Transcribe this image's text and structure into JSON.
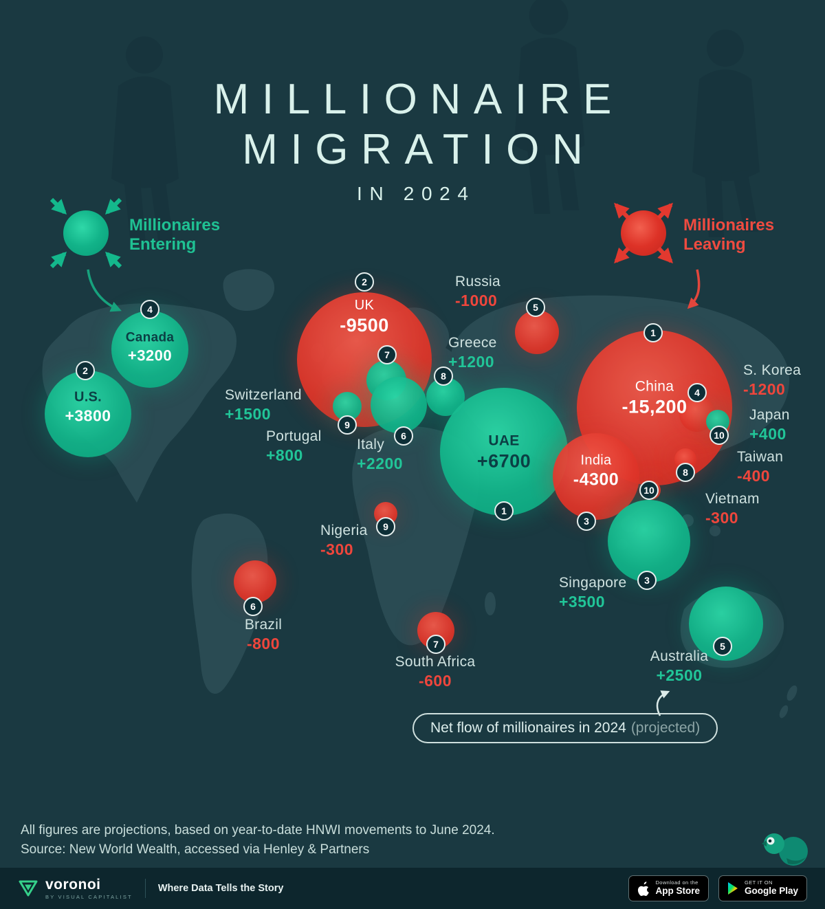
{
  "title": {
    "line1": "MILLIONAIRE",
    "line2": "MIGRATION",
    "subtitle": "IN 2024"
  },
  "legend": {
    "entering": "Millionaires Entering",
    "leaving": "Millionaires Leaving"
  },
  "pill": {
    "text": "Net flow of millionaires in 2024",
    "suffix": "(projected)"
  },
  "footnote": {
    "line1": "All figures are projections, based on year-to-date HNWI movements to June 2024.",
    "line2": "Source: New World Wealth, accessed via Henley & Partners"
  },
  "footer": {
    "brand": "voronoi",
    "brand_sub": "BY VISUAL CAPITALIST",
    "tagline": "Where Data Tells the Story",
    "appstore": {
      "top": "Download on the",
      "bottom": "App Store"
    },
    "googleplay": {
      "top": "GET IT ON",
      "bottom": "Google Play"
    }
  },
  "colors": {
    "entering": "#12b98c",
    "leaving": "#e0392c",
    "background": "#1a3941",
    "land": "#2a4b53"
  },
  "chart_data": {
    "type": "bubble_map",
    "title": "Millionaire Migration in 2024",
    "unit": "net flow of millionaires (projected)",
    "legend": [
      "Millionaires Entering",
      "Millionaires Leaving"
    ],
    "entries": [
      {
        "country": "Canada",
        "value": 3200,
        "display": "+3200",
        "direction": "entering",
        "rank": 4
      },
      {
        "country": "U.S.",
        "value": 3800,
        "display": "+3800",
        "direction": "entering",
        "rank": 2
      },
      {
        "country": "UK",
        "value": -9500,
        "display": "-9500",
        "direction": "leaving",
        "rank": 2
      },
      {
        "country": "Russia",
        "value": -1000,
        "display": "-1000",
        "direction": "leaving",
        "rank": 5
      },
      {
        "country": "Switzerland",
        "value": 1500,
        "display": "+1500",
        "direction": "entering",
        "rank": 7
      },
      {
        "country": "Portugal",
        "value": 800,
        "display": "+800",
        "direction": "entering",
        "rank": 9
      },
      {
        "country": "Italy",
        "value": 2200,
        "display": "+2200",
        "direction": "entering",
        "rank": 6
      },
      {
        "country": "Greece",
        "value": 1200,
        "display": "+1200",
        "direction": "entering",
        "rank": 8
      },
      {
        "country": "UAE",
        "value": 6700,
        "display": "+6700",
        "direction": "entering",
        "rank": 1
      },
      {
        "country": "China",
        "value": -15200,
        "display": "-15,200",
        "direction": "leaving",
        "rank": 1
      },
      {
        "country": "S. Korea",
        "value": -1200,
        "display": "-1200",
        "direction": "leaving",
        "rank": 4
      },
      {
        "country": "Japan",
        "value": 400,
        "display": "+400",
        "direction": "entering",
        "rank": 10
      },
      {
        "country": "Taiwan",
        "value": -400,
        "display": "-400",
        "direction": "leaving",
        "rank": 8
      },
      {
        "country": "Vietnam",
        "value": -300,
        "display": "-300",
        "direction": "leaving",
        "rank": 10
      },
      {
        "country": "India",
        "value": -4300,
        "display": "-4300",
        "direction": "leaving",
        "rank": 3
      },
      {
        "country": "Singapore",
        "value": 3500,
        "display": "+3500",
        "direction": "entering",
        "rank": 3
      },
      {
        "country": "Nigeria",
        "value": -300,
        "display": "-300",
        "direction": "leaving",
        "rank": 9
      },
      {
        "country": "Brazil",
        "value": -800,
        "display": "-800",
        "direction": "leaving",
        "rank": 6
      },
      {
        "country": "South Africa",
        "value": -600,
        "display": "-600",
        "direction": "leaving",
        "rank": 7
      },
      {
        "country": "Australia",
        "value": 2500,
        "display": "+2500",
        "direction": "entering",
        "rank": 5
      }
    ]
  }
}
